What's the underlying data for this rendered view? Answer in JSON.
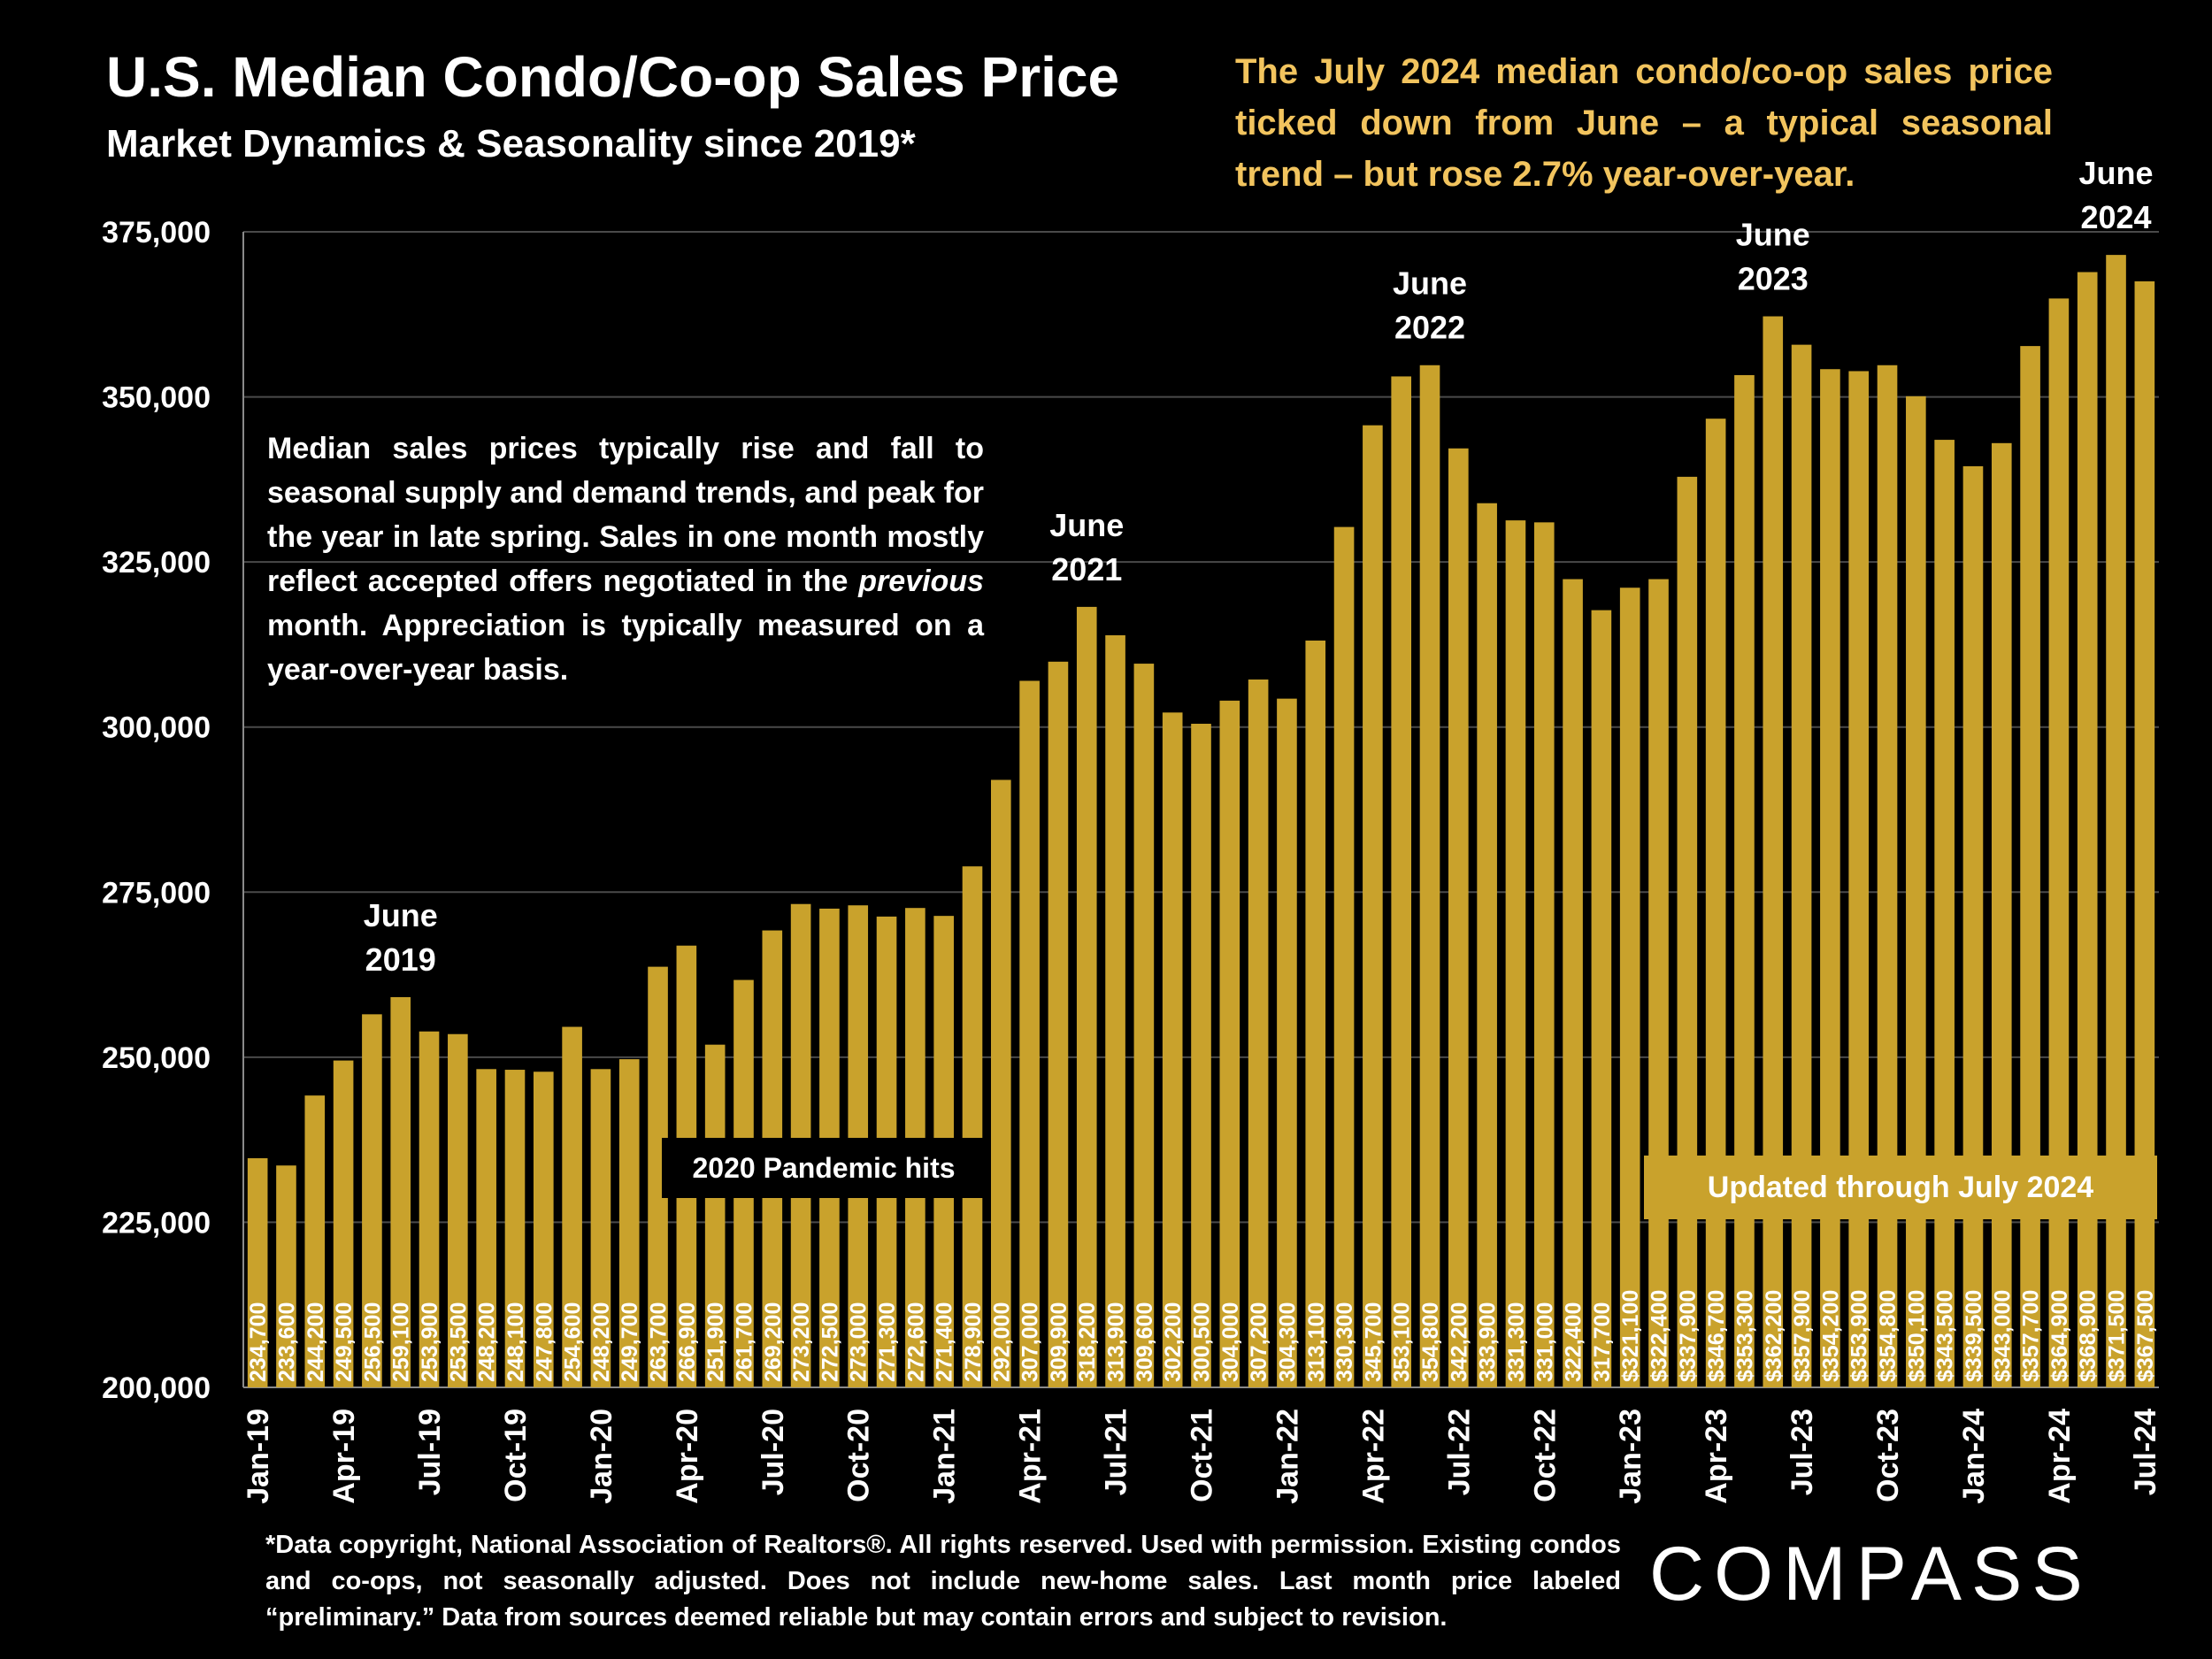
{
  "header": {
    "title": "U.S. Median Condo/Co-op Sales Price",
    "subtitle": "Market Dynamics & Seasonality since 2019*"
  },
  "headline": "The July 2024 median condo/co-op sales price ticked down from June – a typical seasonal trend – but rose 2.7% year-over-year.",
  "note": {
    "part1": "Median sales prices typically rise and fall to seasonal supply and demand trends, and peak for the year in late spring. Sales in one month mostly reflect accepted offers negotiated in the ",
    "italic": "previous",
    "part2": " month. Appreciation is typically measured on a year-over-year basis."
  },
  "pandemic_label": "2020 Pandemic hits",
  "updated_label": "Updated through July 2024",
  "footnote": "*Data copyright, National Association of Realtors®. All rights reserved. Used with permission. Existing condos and co-ops, not seasonally adjusted. Does not include new-home sales. Last month price labeled “preliminary.” Data from sources deemed reliable but may contain errors and subject to revision.",
  "logo": "COMPASS",
  "colors": {
    "background": "#000000",
    "bar": "#c9a22c",
    "headline": "#f2c45e",
    "gridline": "#4a4a4a",
    "text": "#ffffff"
  },
  "chart_data": {
    "type": "bar",
    "title": "U.S. Median Condo/Co-op Sales Price",
    "ylim": [
      200000,
      375000
    ],
    "yticks": [
      "200,000",
      "225,000",
      "250,000",
      "275,000",
      "300,000",
      "325,000",
      "350,000",
      "375,000"
    ],
    "ytick_values": [
      200000,
      225000,
      250000,
      275000,
      300000,
      325000,
      350000,
      375000
    ],
    "grid": true,
    "categories": [
      "Jan-19",
      "Feb-19",
      "Mar-19",
      "Apr-19",
      "May-19",
      "Jun-19",
      "Jul-19",
      "Aug-19",
      "Sep-19",
      "Oct-19",
      "Nov-19",
      "Dec-19",
      "Jan-20",
      "Feb-20",
      "Mar-20",
      "Apr-20",
      "May-20",
      "Jun-20",
      "Jul-20",
      "Aug-20",
      "Sep-20",
      "Oct-20",
      "Nov-20",
      "Dec-20",
      "Jan-21",
      "Feb-21",
      "Mar-21",
      "Apr-21",
      "May-21",
      "Jun-21",
      "Jul-21",
      "Aug-21",
      "Sep-21",
      "Oct-21",
      "Nov-21",
      "Dec-21",
      "Jan-22",
      "Feb-22",
      "Mar-22",
      "Apr-22",
      "May-22",
      "Jun-22",
      "Jul-22",
      "Aug-22",
      "Sep-22",
      "Oct-22",
      "Nov-22",
      "Dec-22",
      "Jan-23",
      "Feb-23",
      "Mar-23",
      "Apr-23",
      "May-23",
      "Jun-23",
      "Jul-23",
      "Aug-23",
      "Sep-23",
      "Oct-23",
      "Nov-23",
      "Dec-23",
      "Jan-24",
      "Feb-24",
      "Mar-24",
      "Apr-24",
      "May-24",
      "Jun-24",
      "Jul-24"
    ],
    "xtick_labels": [
      "Jan-19",
      "Apr-19",
      "Jul-19",
      "Oct-19",
      "Jan-20",
      "Apr-20",
      "Jul-20",
      "Oct-20",
      "Jan-21",
      "Apr-21",
      "Jul-21",
      "Oct-21",
      "Jan-22",
      "Apr-22",
      "Jul-22",
      "Oct-22",
      "Jan-23",
      "Apr-23",
      "Jul-23",
      "Oct-23",
      "Jan-24",
      "Apr-24",
      "Jul-24"
    ],
    "values": [
      234700,
      233600,
      244200,
      249500,
      256500,
      259100,
      253900,
      253500,
      248200,
      248100,
      247800,
      254600,
      248200,
      249700,
      263700,
      266900,
      251900,
      261700,
      269200,
      273200,
      272500,
      273000,
      271300,
      272600,
      271400,
      278900,
      292000,
      307000,
      309900,
      318200,
      313900,
      309600,
      302200,
      300500,
      304000,
      307200,
      304300,
      313100,
      330300,
      345700,
      353100,
      354800,
      342200,
      333900,
      331300,
      331000,
      322400,
      317700,
      321100,
      322400,
      337900,
      346700,
      353300,
      362200,
      357900,
      354200,
      353900,
      354800,
      350100,
      343500,
      339500,
      343000,
      357700,
      364900,
      368900,
      371500,
      367500
    ],
    "data_labels": [
      "234,700",
      "233,600",
      "244,200",
      "249,500",
      "256,500",
      "259,100",
      "253,900",
      "253,500",
      "248,200",
      "248,100",
      "247,800",
      "254,600",
      "248,200",
      "249,700",
      "263,700",
      "266,900",
      "251,900",
      "261,700",
      "269,200",
      "273,200",
      "272,500",
      "273,000",
      "271,300",
      "272,600",
      "271,400",
      "278,900",
      "292,000",
      "307,000",
      "309,900",
      "318,200",
      "313,900",
      "309,600",
      "302,200",
      "300,500",
      "304,000",
      "307,200",
      "304,300",
      "313,100",
      "330,300",
      "345,700",
      "353,100",
      "354,800",
      "342,200",
      "333,900",
      "331,300",
      "331,000",
      "322,400",
      "317,700",
      "$321,100",
      "$322,400",
      "$337,900",
      "$346,700",
      "$353,300",
      "$362,200",
      "$357,900",
      "$354,200",
      "$353,900",
      "$354,800",
      "$350,100",
      "$343,500",
      "$339,500",
      "$343,000",
      "$357,700",
      "$364,900",
      "$368,900",
      "$371,500",
      "$367,500"
    ],
    "annotations": [
      {
        "label": "June\n2019",
        "index": 5
      },
      {
        "label": "June\n2021",
        "index": 29
      },
      {
        "label": "June\n2022",
        "index": 41
      },
      {
        "label": "June\n2023",
        "index": 53
      },
      {
        "label": "June\n2024",
        "index": 65
      }
    ]
  }
}
